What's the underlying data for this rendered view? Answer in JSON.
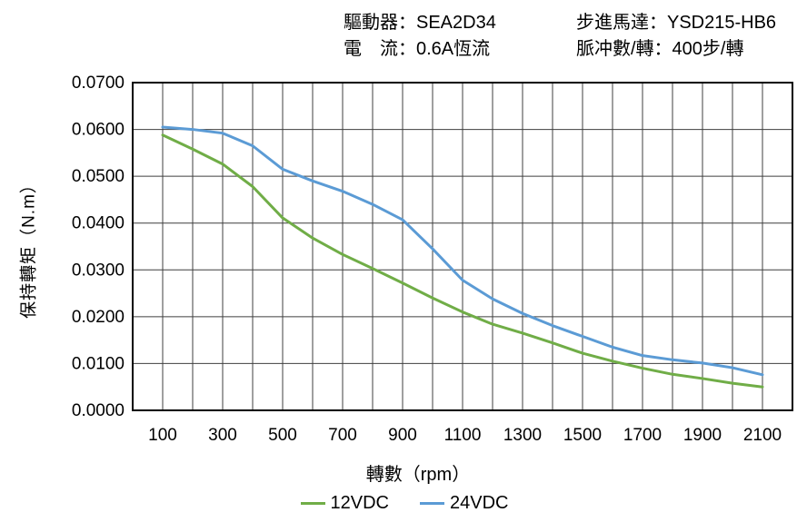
{
  "header": {
    "driver": "驅動器：SEA2D34",
    "current": "電　流：0.6A恆流",
    "motor": "步進馬達：YSD215-HB6",
    "steps_per_rev": "脈冲數/轉：400步/轉"
  },
  "chart_data": {
    "type": "line",
    "title": "",
    "xlabel": "轉數（rpm）",
    "ylabel": "保持轉矩（N.m）",
    "xlim": [
      0,
      2200
    ],
    "ylim": [
      0,
      0.07
    ],
    "grid": true,
    "grid_color": "#3f3f3f",
    "axis_color": "#000000",
    "x_grid_step": 100,
    "y_grid_step": 0.01,
    "x_ticks": [
      100,
      300,
      500,
      700,
      900,
      1100,
      1300,
      1500,
      1700,
      1900,
      2100
    ],
    "y_ticks": [
      {
        "value": 0.07,
        "label": "0.0700"
      },
      {
        "value": 0.06,
        "label": "0.0600"
      },
      {
        "value": 0.05,
        "label": "0.0500"
      },
      {
        "value": 0.04,
        "label": "0.0400"
      },
      {
        "value": 0.03,
        "label": "0.0300"
      },
      {
        "value": 0.02,
        "label": "0.0200"
      },
      {
        "value": 0.01,
        "label": "0.0100"
      },
      {
        "value": 0.0,
        "label": "0.0000"
      }
    ],
    "x": [
      100,
      200,
      300,
      400,
      500,
      600,
      700,
      800,
      900,
      1000,
      1100,
      1200,
      1300,
      1400,
      1500,
      1600,
      1700,
      1800,
      1900,
      2000,
      2100
    ],
    "series": [
      {
        "name": "12VDC",
        "color": "#70AD47",
        "values": [
          0.0588,
          0.0558,
          0.0526,
          0.0478,
          0.0411,
          0.0368,
          0.0333,
          0.0303,
          0.0272,
          0.024,
          0.021,
          0.0184,
          0.0165,
          0.0144,
          0.0122,
          0.0105,
          0.009,
          0.0077,
          0.0068,
          0.0058,
          0.005
        ]
      },
      {
        "name": "24VDC",
        "color": "#5B9BD5",
        "values": [
          0.0605,
          0.06,
          0.0592,
          0.0565,
          0.0515,
          0.049,
          0.0468,
          0.044,
          0.0407,
          0.0345,
          0.0278,
          0.0238,
          0.0207,
          0.0181,
          0.0158,
          0.0135,
          0.0117,
          0.0108,
          0.0101,
          0.0091,
          0.0076
        ]
      }
    ],
    "legend_position": "bottom"
  }
}
